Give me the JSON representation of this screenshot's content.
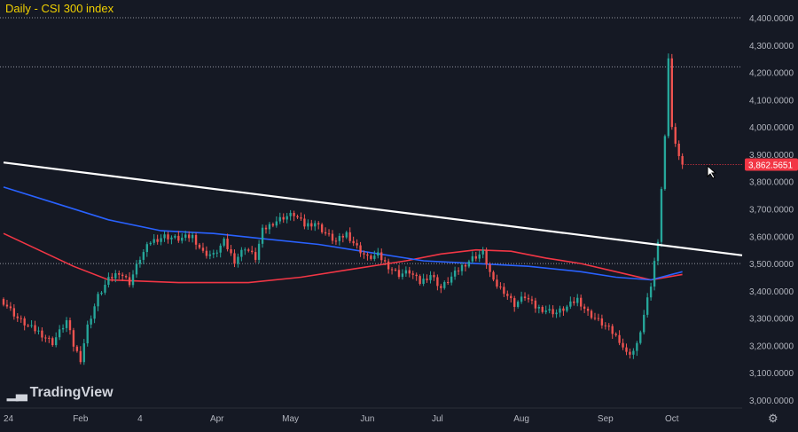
{
  "title": "Daily - CSI 300 index",
  "logo": "TradingView",
  "icons": {
    "settings": "gear-icon",
    "cursor": "pointer-cursor-icon"
  },
  "colors": {
    "bg": "#151924",
    "up": "#26a69a",
    "down": "#ef5350",
    "ma_red": "#f23645",
    "ma_blue": "#2962ff",
    "trendline": "#ffffff",
    "title": "#f0d000",
    "price_tag": "#f23645"
  },
  "current_price_label": "3,862.5651",
  "chart_data": {
    "type": "candlestick",
    "title": "Daily - CSI 300 index",
    "y_ticks": [
      "4,400.0000",
      "4,300.0000",
      "4,200.0000",
      "4,100.0000",
      "4,000.0000",
      "3,900.0000",
      "3,800.0000",
      "3,700.0000",
      "3,600.0000",
      "3,500.0000",
      "3,400.0000",
      "3,300.0000",
      "3,200.0000",
      "3,100.0000",
      "3,000.0000"
    ],
    "x_ticks": [
      "24",
      "Feb",
      "4",
      "Apr",
      "May",
      "Jun",
      "Jul",
      "Aug",
      "Sep",
      "Oct"
    ],
    "ylim": [
      3000,
      4460
    ],
    "horizontal_lines": [
      4400,
      4220,
      3500
    ],
    "current_price": 3862.5651,
    "close_path": [
      [
        0,
        3360
      ],
      [
        2,
        3330
      ],
      [
        4,
        3300
      ],
      [
        7,
        3270
      ],
      [
        10,
        3250
      ],
      [
        12,
        3230
      ],
      [
        14,
        3210
      ],
      [
        16,
        3250
      ],
      [
        18,
        3290
      ],
      [
        20,
        3200
      ],
      [
        22,
        3150
      ],
      [
        24,
        3270
      ],
      [
        27,
        3380
      ],
      [
        30,
        3440
      ],
      [
        33,
        3470
      ],
      [
        36,
        3430
      ],
      [
        39,
        3520
      ],
      [
        42,
        3580
      ],
      [
        46,
        3600
      ],
      [
        50,
        3590
      ],
      [
        54,
        3600
      ],
      [
        57,
        3540
      ],
      [
        60,
        3530
      ],
      [
        63,
        3580
      ],
      [
        66,
        3510
      ],
      [
        69,
        3560
      ],
      [
        72,
        3520
      ],
      [
        74,
        3620
      ],
      [
        77,
        3650
      ],
      [
        80,
        3670
      ],
      [
        83,
        3680
      ],
      [
        86,
        3640
      ],
      [
        89,
        3650
      ],
      [
        92,
        3610
      ],
      [
        95,
        3580
      ],
      [
        98,
        3610
      ],
      [
        101,
        3560
      ],
      [
        104,
        3520
      ],
      [
        107,
        3530
      ],
      [
        110,
        3490
      ],
      [
        113,
        3460
      ],
      [
        116,
        3470
      ],
      [
        119,
        3430
      ],
      [
        122,
        3460
      ],
      [
        125,
        3410
      ],
      [
        128,
        3450
      ],
      [
        131,
        3490
      ],
      [
        134,
        3520
      ],
      [
        137,
        3540
      ],
      [
        140,
        3430
      ],
      [
        143,
        3400
      ],
      [
        146,
        3350
      ],
      [
        149,
        3380
      ],
      [
        152,
        3340
      ],
      [
        155,
        3330
      ],
      [
        158,
        3320
      ],
      [
        161,
        3340
      ],
      [
        164,
        3370
      ],
      [
        167,
        3320
      ],
      [
        170,
        3290
      ],
      [
        173,
        3260
      ],
      [
        176,
        3220
      ],
      [
        178,
        3170
      ],
      [
        180,
        3180
      ],
      [
        181,
        3200
      ],
      [
        183,
        3310
      ],
      [
        185,
        3420
      ],
      [
        187,
        3590
      ],
      [
        189,
        3960
      ],
      [
        190,
        4260
      ],
      [
        191,
        4000
      ],
      [
        192,
        3930
      ],
      [
        193,
        3900
      ],
      [
        194,
        3860
      ]
    ],
    "ma_red": [
      [
        0,
        3610
      ],
      [
        20,
        3490
      ],
      [
        30,
        3440
      ],
      [
        50,
        3430
      ],
      [
        70,
        3430
      ],
      [
        85,
        3450
      ],
      [
        100,
        3480
      ],
      [
        115,
        3510
      ],
      [
        125,
        3535
      ],
      [
        135,
        3550
      ],
      [
        145,
        3545
      ],
      [
        155,
        3520
      ],
      [
        165,
        3500
      ],
      [
        175,
        3470
      ],
      [
        185,
        3440
      ],
      [
        194,
        3460
      ]
    ],
    "ma_blue": [
      [
        0,
        3780
      ],
      [
        15,
        3720
      ],
      [
        30,
        3660
      ],
      [
        45,
        3620
      ],
      [
        60,
        3610
      ],
      [
        75,
        3590
      ],
      [
        90,
        3570
      ],
      [
        105,
        3540
      ],
      [
        120,
        3510
      ],
      [
        135,
        3500
      ],
      [
        150,
        3490
      ],
      [
        165,
        3470
      ],
      [
        175,
        3450
      ],
      [
        185,
        3440
      ],
      [
        194,
        3470
      ]
    ],
    "trendline": {
      "from": [
        0,
        3870
      ],
      "to": [
        206,
        3530
      ]
    },
    "x_tick_index": [
      0,
      22,
      39,
      61,
      82,
      104,
      124,
      148,
      172,
      191
    ],
    "n_index": 206
  }
}
